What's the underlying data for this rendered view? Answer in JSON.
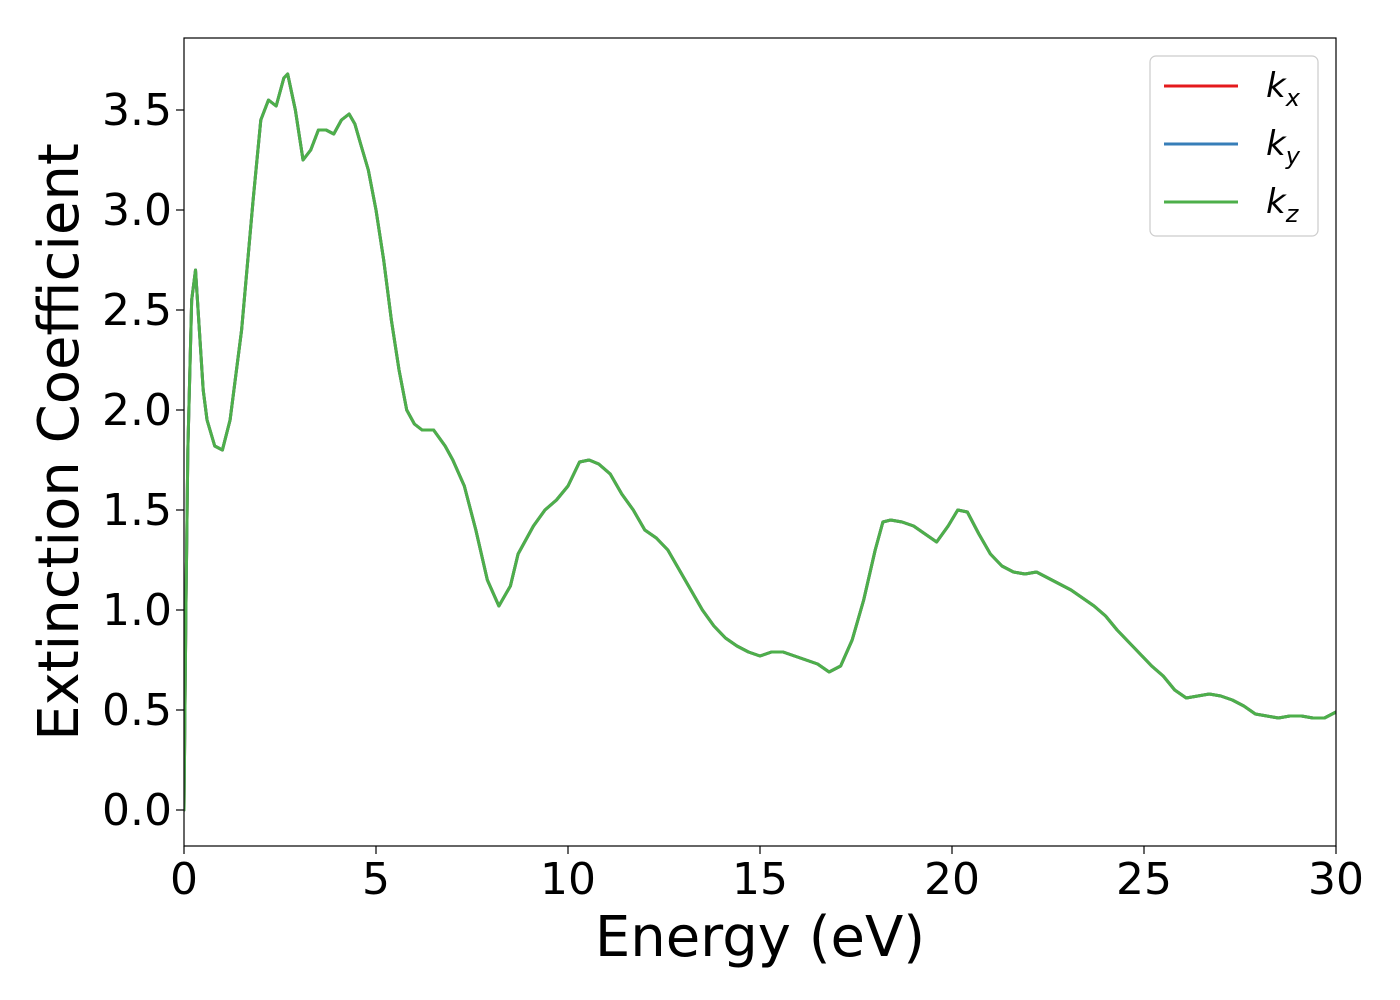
{
  "chart_data": {
    "type": "line",
    "xlabel": "Energy (eV)",
    "ylabel": "Extinction Coefficient",
    "xlim": [
      0,
      30
    ],
    "ylim": [
      -0.18,
      3.86
    ],
    "xticks": [
      0,
      5,
      10,
      15,
      20,
      25,
      30
    ],
    "yticks": [
      0.0,
      0.5,
      1.0,
      1.5,
      2.0,
      2.5,
      3.0,
      3.5
    ],
    "xtick_labels": [
      "0",
      "5",
      "10",
      "15",
      "20",
      "25",
      "30"
    ],
    "ytick_labels": [
      "0.0",
      "0.5",
      "1.0",
      "1.5",
      "2.0",
      "2.5",
      "3.0",
      "3.5"
    ],
    "grid": false,
    "legend_position": "top-right",
    "series_names_note": "",
    "series": [
      {
        "name": "k",
        "sub": "x",
        "color": "#e41a1c",
        "x": [
          0,
          0.05,
          0.1,
          0.2,
          0.3,
          0.4,
          0.5,
          0.6,
          0.8,
          1.0,
          1.2,
          1.5,
          1.8,
          2.0,
          2.2,
          2.4,
          2.6,
          2.7,
          2.9,
          3.1,
          3.3,
          3.5,
          3.7,
          3.9,
          4.1,
          4.3,
          4.45,
          4.6,
          4.8,
          5.0,
          5.2,
          5.4,
          5.6,
          5.8,
          6.0,
          6.2,
          6.5,
          6.8,
          7.0,
          7.3,
          7.6,
          7.9,
          8.2,
          8.5,
          8.7,
          8.9,
          9.1,
          9.4,
          9.7,
          10.0,
          10.3,
          10.55,
          10.8,
          11.1,
          11.4,
          11.7,
          12.0,
          12.3,
          12.6,
          12.9,
          13.2,
          13.5,
          13.8,
          14.1,
          14.4,
          14.7,
          15.0,
          15.3,
          15.6,
          15.9,
          16.2,
          16.5,
          16.8,
          17.1,
          17.4,
          17.7,
          18.0,
          18.2,
          18.4,
          18.7,
          19.0,
          19.3,
          19.6,
          19.9,
          20.15,
          20.4,
          20.7,
          21.0,
          21.3,
          21.6,
          21.9,
          22.2,
          22.5,
          22.8,
          23.1,
          23.4,
          23.7,
          24.0,
          24.3,
          24.6,
          24.9,
          25.2,
          25.5,
          25.8,
          26.1,
          26.4,
          26.7,
          27.0,
          27.3,
          27.6,
          27.9,
          28.2,
          28.5,
          28.8,
          29.1,
          29.4,
          29.7,
          30.0
        ],
        "values": [
          0.0,
          1.0,
          1.8,
          2.55,
          2.7,
          2.4,
          2.1,
          1.95,
          1.82,
          1.8,
          1.95,
          2.4,
          3.05,
          3.45,
          3.55,
          3.52,
          3.66,
          3.68,
          3.5,
          3.25,
          3.3,
          3.4,
          3.4,
          3.38,
          3.45,
          3.48,
          3.43,
          3.33,
          3.2,
          3.0,
          2.75,
          2.45,
          2.2,
          2.0,
          1.93,
          1.9,
          1.9,
          1.82,
          1.75,
          1.62,
          1.4,
          1.15,
          1.02,
          1.12,
          1.28,
          1.35,
          1.42,
          1.5,
          1.55,
          1.62,
          1.74,
          1.75,
          1.73,
          1.68,
          1.58,
          1.5,
          1.4,
          1.36,
          1.3,
          1.2,
          1.1,
          1.0,
          0.92,
          0.86,
          0.82,
          0.79,
          0.77,
          0.79,
          0.79,
          0.77,
          0.75,
          0.73,
          0.69,
          0.72,
          0.85,
          1.05,
          1.3,
          1.44,
          1.45,
          1.44,
          1.42,
          1.38,
          1.34,
          1.42,
          1.5,
          1.49,
          1.38,
          1.28,
          1.22,
          1.19,
          1.18,
          1.19,
          1.16,
          1.13,
          1.1,
          1.06,
          1.02,
          0.97,
          0.9,
          0.84,
          0.78,
          0.72,
          0.67,
          0.6,
          0.56,
          0.57,
          0.58,
          0.57,
          0.55,
          0.52,
          0.48,
          0.47,
          0.46,
          0.47,
          0.47,
          0.46,
          0.46,
          0.49
        ]
      },
      {
        "name": "k",
        "sub": "y",
        "color": "#377eb8",
        "x": [
          0,
          0.05,
          0.1,
          0.2,
          0.3,
          0.4,
          0.5,
          0.6,
          0.8,
          1.0,
          1.2,
          1.5,
          1.8,
          2.0,
          2.2,
          2.4,
          2.6,
          2.7,
          2.9,
          3.1,
          3.3,
          3.5,
          3.7,
          3.9,
          4.1,
          4.3,
          4.45,
          4.6,
          4.8,
          5.0,
          5.2,
          5.4,
          5.6,
          5.8,
          6.0,
          6.2,
          6.5,
          6.8,
          7.0,
          7.3,
          7.6,
          7.9,
          8.2,
          8.5,
          8.7,
          8.9,
          9.1,
          9.4,
          9.7,
          10.0,
          10.3,
          10.55,
          10.8,
          11.1,
          11.4,
          11.7,
          12.0,
          12.3,
          12.6,
          12.9,
          13.2,
          13.5,
          13.8,
          14.1,
          14.4,
          14.7,
          15.0,
          15.3,
          15.6,
          15.9,
          16.2,
          16.5,
          16.8,
          17.1,
          17.4,
          17.7,
          18.0,
          18.2,
          18.4,
          18.7,
          19.0,
          19.3,
          19.6,
          19.9,
          20.15,
          20.4,
          20.7,
          21.0,
          21.3,
          21.6,
          21.9,
          22.2,
          22.5,
          22.8,
          23.1,
          23.4,
          23.7,
          24.0,
          24.3,
          24.6,
          24.9,
          25.2,
          25.5,
          25.8,
          26.1,
          26.4,
          26.7,
          27.0,
          27.3,
          27.6,
          27.9,
          28.2,
          28.5,
          28.8,
          29.1,
          29.4,
          29.7,
          30.0
        ],
        "values": [
          0.0,
          1.0,
          1.8,
          2.55,
          2.7,
          2.4,
          2.1,
          1.95,
          1.82,
          1.8,
          1.95,
          2.4,
          3.05,
          3.45,
          3.55,
          3.52,
          3.66,
          3.68,
          3.5,
          3.25,
          3.3,
          3.4,
          3.4,
          3.38,
          3.45,
          3.48,
          3.43,
          3.33,
          3.2,
          3.0,
          2.75,
          2.45,
          2.2,
          2.0,
          1.93,
          1.9,
          1.9,
          1.82,
          1.75,
          1.62,
          1.4,
          1.15,
          1.02,
          1.12,
          1.28,
          1.35,
          1.42,
          1.5,
          1.55,
          1.62,
          1.74,
          1.75,
          1.73,
          1.68,
          1.58,
          1.5,
          1.4,
          1.36,
          1.3,
          1.2,
          1.1,
          1.0,
          0.92,
          0.86,
          0.82,
          0.79,
          0.77,
          0.79,
          0.79,
          0.77,
          0.75,
          0.73,
          0.69,
          0.72,
          0.85,
          1.05,
          1.3,
          1.44,
          1.45,
          1.44,
          1.42,
          1.38,
          1.34,
          1.42,
          1.5,
          1.49,
          1.38,
          1.28,
          1.22,
          1.19,
          1.18,
          1.19,
          1.16,
          1.13,
          1.1,
          1.06,
          1.02,
          0.97,
          0.9,
          0.84,
          0.78,
          0.72,
          0.67,
          0.6,
          0.56,
          0.57,
          0.58,
          0.57,
          0.55,
          0.52,
          0.48,
          0.47,
          0.46,
          0.47,
          0.47,
          0.46,
          0.46,
          0.49
        ]
      },
      {
        "name": "k",
        "sub": "z",
        "color": "#4daf4a",
        "x": [
          0,
          0.05,
          0.1,
          0.2,
          0.3,
          0.4,
          0.5,
          0.6,
          0.8,
          1.0,
          1.2,
          1.5,
          1.8,
          2.0,
          2.2,
          2.4,
          2.6,
          2.7,
          2.9,
          3.1,
          3.3,
          3.5,
          3.7,
          3.9,
          4.1,
          4.3,
          4.45,
          4.6,
          4.8,
          5.0,
          5.2,
          5.4,
          5.6,
          5.8,
          6.0,
          6.2,
          6.5,
          6.8,
          7.0,
          7.3,
          7.6,
          7.9,
          8.2,
          8.5,
          8.7,
          8.9,
          9.1,
          9.4,
          9.7,
          10.0,
          10.3,
          10.55,
          10.8,
          11.1,
          11.4,
          11.7,
          12.0,
          12.3,
          12.6,
          12.9,
          13.2,
          13.5,
          13.8,
          14.1,
          14.4,
          14.7,
          15.0,
          15.3,
          15.6,
          15.9,
          16.2,
          16.5,
          16.8,
          17.1,
          17.4,
          17.7,
          18.0,
          18.2,
          18.4,
          18.7,
          19.0,
          19.3,
          19.6,
          19.9,
          20.15,
          20.4,
          20.7,
          21.0,
          21.3,
          21.6,
          21.9,
          22.2,
          22.5,
          22.8,
          23.1,
          23.4,
          23.7,
          24.0,
          24.3,
          24.6,
          24.9,
          25.2,
          25.5,
          25.8,
          26.1,
          26.4,
          26.7,
          27.0,
          27.3,
          27.6,
          27.9,
          28.2,
          28.5,
          28.8,
          29.1,
          29.4,
          29.7,
          30.0
        ],
        "values": [
          0.0,
          1.0,
          1.8,
          2.55,
          2.7,
          2.4,
          2.1,
          1.95,
          1.82,
          1.8,
          1.95,
          2.4,
          3.05,
          3.45,
          3.55,
          3.52,
          3.66,
          3.68,
          3.5,
          3.25,
          3.3,
          3.4,
          3.4,
          3.38,
          3.45,
          3.48,
          3.43,
          3.33,
          3.2,
          3.0,
          2.75,
          2.45,
          2.2,
          2.0,
          1.93,
          1.9,
          1.9,
          1.82,
          1.75,
          1.62,
          1.4,
          1.15,
          1.02,
          1.12,
          1.28,
          1.35,
          1.42,
          1.5,
          1.55,
          1.62,
          1.74,
          1.75,
          1.73,
          1.68,
          1.58,
          1.5,
          1.4,
          1.36,
          1.3,
          1.2,
          1.1,
          1.0,
          0.92,
          0.86,
          0.82,
          0.79,
          0.77,
          0.79,
          0.79,
          0.77,
          0.75,
          0.73,
          0.69,
          0.72,
          0.85,
          1.05,
          1.3,
          1.44,
          1.45,
          1.44,
          1.42,
          1.38,
          1.34,
          1.42,
          1.5,
          1.49,
          1.38,
          1.28,
          1.22,
          1.19,
          1.18,
          1.19,
          1.16,
          1.13,
          1.1,
          1.06,
          1.02,
          0.97,
          0.9,
          0.84,
          0.78,
          0.72,
          0.67,
          0.6,
          0.56,
          0.57,
          0.58,
          0.57,
          0.55,
          0.52,
          0.48,
          0.47,
          0.46,
          0.47,
          0.47,
          0.46,
          0.46,
          0.49
        ]
      }
    ]
  }
}
